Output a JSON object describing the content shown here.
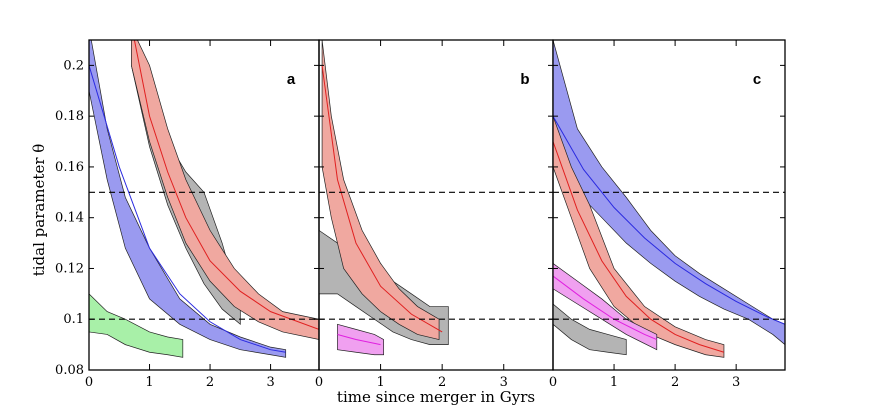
{
  "chart_data": {
    "type": "area",
    "xlabel": "time since merger in Gyrs",
    "ylabel": "tidal parameter θ",
    "ylim": [
      0.08,
      0.21
    ],
    "yticks": [
      0.08,
      0.1,
      0.12,
      0.14,
      0.16,
      0.18,
      0.2
    ],
    "ytick_labels": [
      "0.08",
      "0.1",
      "0.12",
      "0.14",
      "0.16",
      "0.18",
      "0.2"
    ],
    "reference_lines": [
      0.1,
      0.15
    ],
    "colors": {
      "blue": "#9a9af0",
      "red": "#f0a8a0",
      "gray": "#b4b4b4",
      "green": "#a8f0a8",
      "magenta": "#f0a0f0",
      "blue_line": "#2a2ae0",
      "red_line": "#e02020",
      "magenta_line": "#e020e0",
      "green_line": "#20c020"
    },
    "panels": [
      {
        "label": "a",
        "xlim": [
          0,
          3.8
        ],
        "xticks": [
          0,
          1,
          2,
          3
        ],
        "xtick_labels": [
          "0",
          "1",
          "2",
          "3"
        ],
        "series": [
          {
            "color": "blue",
            "x": [
              0,
              0.3,
              0.6,
              1.0,
              1.5,
              2.0,
              2.5,
              3.0,
              3.25
            ],
            "low": [
              0.19,
              0.155,
              0.128,
              0.108,
              0.098,
              0.092,
              0.088,
              0.086,
              0.085
            ],
            "high": [
              0.215,
              0.175,
              0.148,
              0.128,
              0.108,
              0.098,
              0.093,
              0.089,
              0.088
            ]
          },
          {
            "color": "gray",
            "x": [
              0.7,
              1.0,
              1.3,
              1.6,
              1.9,
              2.2,
              2.5
            ],
            "low": [
              0.2,
              0.168,
              0.145,
              0.128,
              0.114,
              0.104,
              0.098
            ],
            "high": [
              0.215,
              0.19,
              0.17,
              0.158,
              0.15,
              0.13,
              0.105
            ]
          },
          {
            "color": "red",
            "x": [
              0.7,
              1.0,
              1.3,
              1.6,
              2.0,
              2.4,
              2.8,
              3.2,
              3.8
            ],
            "low": [
              0.2,
              0.17,
              0.148,
              0.13,
              0.115,
              0.105,
              0.099,
              0.095,
              0.092
            ],
            "high": [
              0.215,
              0.2,
              0.175,
              0.155,
              0.135,
              0.12,
              0.11,
              0.103,
              0.1
            ]
          },
          {
            "color": "green",
            "x": [
              0,
              0.3,
              0.6,
              1.0,
              1.3,
              1.55
            ],
            "low": [
              0.095,
              0.094,
              0.09,
              0.087,
              0.086,
              0.085
            ],
            "high": [
              0.11,
              0.103,
              0.1,
              0.095,
              0.093,
              0.092
            ]
          }
        ],
        "fits": [
          {
            "color": "blue_line",
            "x": [
              0,
              0.5,
              1.0,
              1.5,
              2.0,
              2.5,
              3.0,
              3.25
            ],
            "y": [
              0.2,
              0.16,
              0.128,
              0.11,
              0.099,
              0.092,
              0.088,
              0.087
            ]
          },
          {
            "color": "red_line",
            "x": [
              0.75,
              1.0,
              1.3,
              1.6,
              2.0,
              2.5,
              3.0,
              3.8
            ],
            "y": [
              0.21,
              0.18,
              0.158,
              0.14,
              0.123,
              0.111,
              0.103,
              0.096
            ]
          }
        ]
      },
      {
        "label": "b",
        "xlim": [
          0,
          3.8
        ],
        "xticks": [
          0,
          1,
          2,
          3
        ],
        "xtick_labels": [
          "0",
          "1",
          "2",
          "3"
        ],
        "series": [
          {
            "color": "gray",
            "x": [
              0,
              0.3,
              0.6,
              0.9,
              1.2,
              1.5,
              1.8,
              2.1
            ],
            "low": [
              0.11,
              0.11,
              0.105,
              0.1,
              0.095,
              0.092,
              0.09,
              0.09
            ],
            "high": [
              0.135,
              0.13,
              0.125,
              0.12,
              0.115,
              0.11,
              0.105,
              0.105
            ]
          },
          {
            "color": "red",
            "x": [
              0.05,
              0.2,
              0.4,
              0.7,
              1.0,
              1.3,
              1.6,
              1.95
            ],
            "low": [
              0.16,
              0.14,
              0.12,
              0.11,
              0.103,
              0.098,
              0.094,
              0.092
            ],
            "high": [
              0.21,
              0.18,
              0.155,
              0.135,
              0.122,
              0.112,
              0.105,
              0.1
            ]
          },
          {
            "color": "magenta",
            "x": [
              0.3,
              0.6,
              0.9,
              1.05
            ],
            "low": [
              0.088,
              0.087,
              0.086,
              0.086
            ],
            "high": [
              0.098,
              0.096,
              0.094,
              0.092
            ]
          }
        ],
        "fits": [
          {
            "color": "red_line",
            "x": [
              0.05,
              0.3,
              0.6,
              1.0,
              1.5,
              2.0
            ],
            "y": [
              0.2,
              0.155,
              0.13,
              0.113,
              0.102,
              0.095
            ]
          },
          {
            "color": "magenta_line",
            "x": [
              0.3,
              0.6,
              1.0
            ],
            "y": [
              0.094,
              0.092,
              0.09
            ]
          }
        ]
      },
      {
        "label": "c",
        "xlim": [
          0,
          3.8
        ],
        "xticks": [
          0,
          1,
          2,
          3
        ],
        "xtick_labels": [
          "0",
          "1",
          "2",
          "3"
        ],
        "series": [
          {
            "color": "blue",
            "x": [
              0,
              0.4,
              0.8,
              1.2,
              1.6,
              2.0,
              2.4,
              2.8,
              3.2,
              3.6,
              3.8
            ],
            "low": [
              0.16,
              0.15,
              0.14,
              0.13,
              0.122,
              0.115,
              0.109,
              0.104,
              0.1,
              0.094,
              0.09
            ],
            "high": [
              0.21,
              0.175,
              0.16,
              0.148,
              0.135,
              0.125,
              0.118,
              0.112,
              0.106,
              0.1,
              0.098
            ]
          },
          {
            "color": "red",
            "x": [
              0,
              0.3,
              0.6,
              1.0,
              1.5,
              2.0,
              2.5,
              2.8
            ],
            "low": [
              0.16,
              0.14,
              0.12,
              0.105,
              0.095,
              0.09,
              0.086,
              0.085
            ],
            "high": [
              0.18,
              0.16,
              0.145,
              0.12,
              0.105,
              0.097,
              0.092,
              0.09
            ]
          },
          {
            "color": "magenta",
            "x": [
              0,
              0.4,
              0.8,
              1.2,
              1.7
            ],
            "low": [
              0.112,
              0.106,
              0.1,
              0.094,
              0.088
            ],
            "high": [
              0.122,
              0.115,
              0.108,
              0.1,
              0.094
            ]
          },
          {
            "color": "gray",
            "x": [
              0,
              0.3,
              0.6,
              0.9,
              1.2
            ],
            "low": [
              0.098,
              0.092,
              0.088,
              0.087,
              0.086
            ],
            "high": [
              0.106,
              0.1,
              0.096,
              0.094,
              0.092
            ]
          }
        ],
        "fits": [
          {
            "color": "blue_line",
            "x": [
              0,
              0.5,
              1.0,
              1.5,
              2.0,
              2.5,
              3.0,
              3.5,
              3.8
            ],
            "y": [
              0.18,
              0.159,
              0.144,
              0.132,
              0.122,
              0.114,
              0.107,
              0.101,
              0.098
            ]
          },
          {
            "color": "red_line",
            "x": [
              0,
              0.4,
              0.8,
              1.2,
              1.6,
              2.0,
              2.4,
              2.8
            ],
            "y": [
              0.17,
              0.143,
              0.123,
              0.109,
              0.1,
              0.094,
              0.09,
              0.087
            ]
          },
          {
            "color": "magenta_line",
            "x": [
              0,
              0.5,
              1.0,
              1.5,
              1.7
            ],
            "y": [
              0.117,
              0.108,
              0.1,
              0.094,
              0.092
            ]
          }
        ]
      }
    ]
  }
}
